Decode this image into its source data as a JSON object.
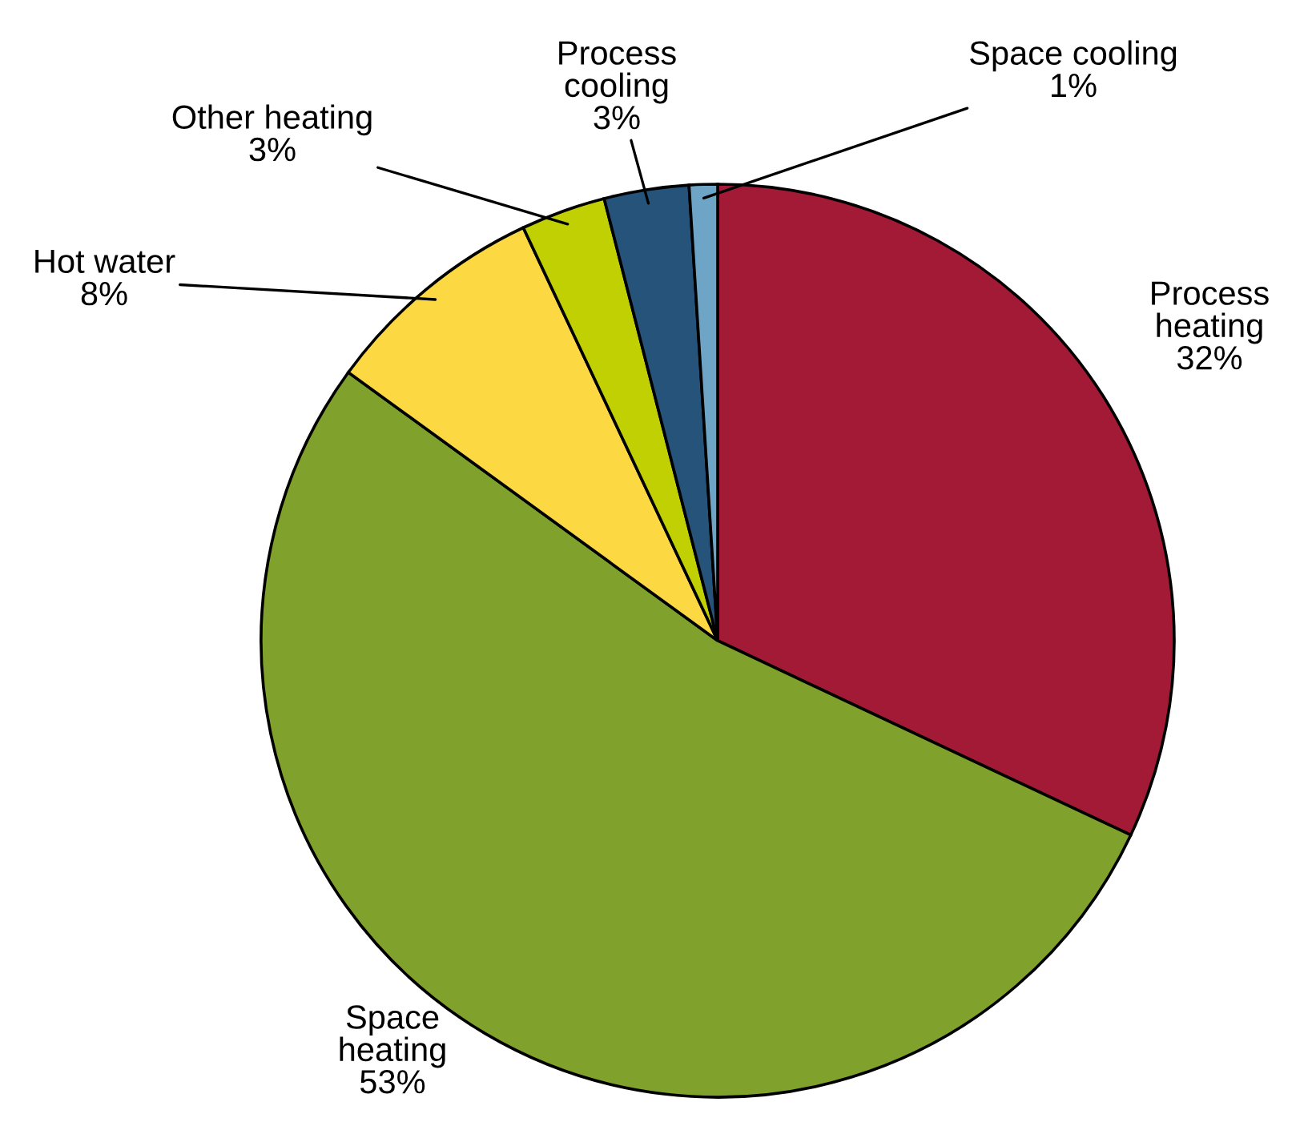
{
  "chart_data": {
    "type": "pie",
    "categories": [
      "Process heating",
      "Space heating",
      "Hot water",
      "Other heating",
      "Process cooling",
      "Space cooling"
    ],
    "values": [
      32,
      53,
      8,
      3,
      3,
      1
    ],
    "value_labels": [
      "32%",
      "53%",
      "8%",
      "3%",
      "3%",
      "1%"
    ],
    "colors": [
      "#a21a35",
      "#80a22c",
      "#fcd843",
      "#c0d002",
      "#26537a",
      "#6ea5c6"
    ],
    "legend": false
  }
}
